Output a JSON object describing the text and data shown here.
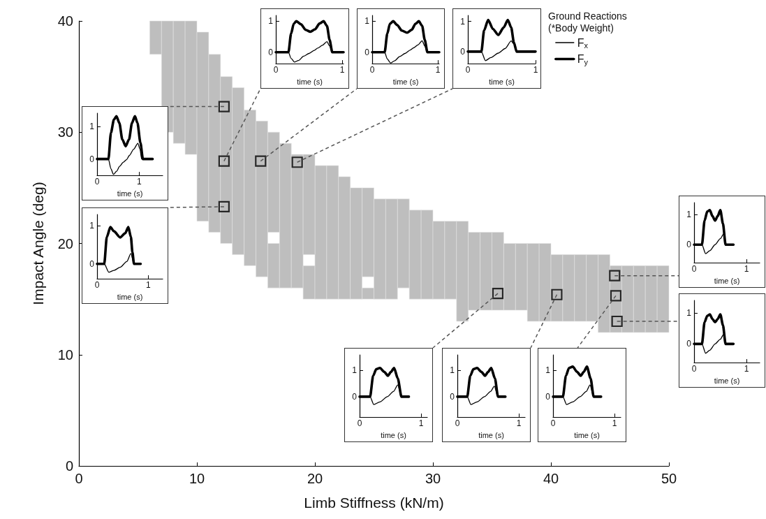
{
  "chart_data": [
    {
      "type": "bar",
      "xlabel": "Limb Stiffness (kN/m)",
      "ylabel": "Impact Angle (deg)",
      "xlim": [
        0,
        50
      ],
      "xticks": [
        0,
        10,
        20,
        30,
        40,
        50
      ],
      "ylim": [
        0,
        40
      ],
      "yticks": [
        0,
        10,
        20,
        30,
        40
      ],
      "grid": false,
      "series": [
        {
          "type": "bar",
          "color": "#bebebe",
          "x": [
            6.5,
            7.5,
            8.5,
            9.5,
            10.5,
            11.5,
            12.5,
            13.5,
            14.5,
            15.5,
            16.5,
            17.5,
            18.5,
            19.5,
            20.5,
            21.5,
            22.5,
            23.5,
            24.5,
            25.5,
            26.5,
            27.5,
            28.5,
            29.5,
            30.5,
            31.5,
            32.5,
            33.5,
            34.5,
            35.5,
            36.5,
            37.5,
            38.5,
            39.5,
            40.5,
            41.5,
            42.5,
            43.5,
            44.5,
            45.5,
            46.5,
            47.5,
            48.5,
            49.5
          ],
          "base": [
            37,
            30,
            29,
            28,
            22,
            21,
            20,
            19,
            18,
            17,
            16,
            16,
            16,
            15,
            15,
            15,
            15,
            15,
            15,
            15,
            15,
            16,
            15,
            15,
            15,
            15,
            13,
            14,
            14,
            14,
            14,
            14,
            13,
            13,
            13,
            13,
            13,
            13,
            12,
            12,
            12,
            12,
            12,
            12
          ],
          "values": [
            3,
            10,
            11,
            12,
            17,
            16,
            15,
            15,
            14,
            14,
            4,
            13,
            12,
            3,
            12,
            12,
            11,
            10,
            1,
            9,
            9,
            8,
            8,
            8,
            7,
            7,
            9,
            7,
            7,
            7,
            6,
            6,
            7,
            7,
            6,
            6,
            6,
            6,
            7,
            6,
            6,
            6,
            6,
            6
          ]
        },
        {
          "type": "bar",
          "color": "#bebebe",
          "x": [
            16.5,
            19.5,
            24.5
          ],
          "base": [
            21,
            19,
            17
          ],
          "values": [
            9,
            9,
            8
          ]
        },
        {
          "type": "scatter",
          "color": "#000000",
          "marker": "square",
          "x": [
            12.3,
            15.4,
            18.5,
            12.3,
            45.4,
            12.3,
            45.6,
            35.5,
            40.5,
            45.5
          ],
          "values": [
            27.4,
            27.4,
            27.3,
            32.3,
            17.1,
            23.3,
            13.0,
            15.5,
            15.4,
            15.3
          ]
        }
      ]
    },
    {
      "type": "line",
      "xlabel": "time (s)",
      "xlim": [
        0,
        1.02
      ],
      "xticks": [
        0,
        1
      ],
      "ylim": [
        -0.37,
        1.19
      ],
      "yticks": [
        0,
        1
      ],
      "series": [
        {
          "color": "#000000",
          "x": [
            0,
            0.19,
            0.23,
            0.28,
            0.34,
            0.42,
            0.5,
            0.58,
            0.63,
            0.7,
            0.77,
            0.81,
            0.85,
            1.02
          ],
          "values": [
            0,
            0,
            -0.2,
            -0.32,
            -0.27,
            -0.13,
            -0.04,
            0.06,
            0.13,
            0.22,
            0.34,
            0.2,
            0,
            0
          ]
        },
        {
          "color": "#000000",
          "x": [
            0,
            0.19,
            0.23,
            0.27,
            0.31,
            0.38,
            0.45,
            0.52,
            0.59,
            0.66,
            0.72,
            0.77,
            0.81,
            0.85,
            1.02
          ],
          "values": [
            0,
            0,
            0.6,
            0.92,
            1.0,
            0.9,
            0.72,
            0.66,
            0.74,
            0.93,
            1.0,
            0.85,
            0.4,
            0,
            0
          ]
        }
      ]
    },
    {
      "type": "line",
      "xlabel": "time (s)",
      "xlim": [
        0,
        1.02
      ],
      "xticks": [
        0,
        1
      ],
      "ylim": [
        -0.37,
        1.19
      ],
      "yticks": [
        0,
        1
      ],
      "series": [
        {
          "color": "#000000",
          "x": [
            0,
            0.19,
            0.23,
            0.28,
            0.34,
            0.42,
            0.5,
            0.58,
            0.63,
            0.7,
            0.76,
            0.8,
            0.84,
            1.02
          ],
          "values": [
            0,
            0,
            -0.22,
            -0.35,
            -0.28,
            -0.14,
            -0.04,
            0.07,
            0.14,
            0.24,
            0.37,
            0.2,
            0,
            0
          ]
        },
        {
          "color": "#000000",
          "x": [
            0,
            0.19,
            0.23,
            0.27,
            0.32,
            0.38,
            0.45,
            0.53,
            0.6,
            0.66,
            0.71,
            0.76,
            0.8,
            0.84,
            1.02
          ],
          "values": [
            0,
            0,
            0.6,
            0.92,
            1.0,
            0.88,
            0.7,
            0.63,
            0.72,
            0.92,
            1.0,
            0.85,
            0.4,
            0,
            0
          ]
        }
      ]
    },
    {
      "type": "line",
      "xlabel": "time (s)",
      "legend": "right",
      "legend_title": "Ground Reactions (*Body Weight)",
      "xlim": [
        0,
        1.0
      ],
      "xticks": [
        0,
        1
      ],
      "ylim": [
        -0.4,
        1.2
      ],
      "yticks": [
        0,
        1
      ],
      "series": [
        {
          "name": "F$_{x}$",
          "color": "#000000",
          "x": [
            0,
            0.2,
            0.26,
            0.34,
            0.45,
            0.55,
            0.64,
            0.68,
            0.72,
            1.0
          ],
          "values": [
            0,
            0,
            -0.3,
            -0.2,
            -0.05,
            0.1,
            0.35,
            0.25,
            0,
            0
          ]
        },
        {
          "name": "F$_{y}$",
          "color": "#000000",
          "x": [
            0,
            0.2,
            0.24,
            0.3,
            0.37,
            0.45,
            0.53,
            0.59,
            0.64,
            0.68,
            0.72,
            1.0
          ],
          "values": [
            0,
            0,
            0.7,
            1.05,
            0.75,
            0.55,
            0.8,
            1.05,
            0.8,
            0.3,
            0,
            0
          ]
        }
      ]
    },
    {
      "type": "line",
      "xlabel": "time (s)",
      "xlim": [
        0,
        1.56
      ],
      "xticks": [
        0,
        1
      ],
      "ylim": [
        -0.5,
        1.4
      ],
      "yticks": [
        0,
        1
      ],
      "series": [
        {
          "color": "#000000",
          "x": [
            0,
            0.27,
            0.33,
            0.39,
            0.46,
            0.54,
            0.62,
            0.7,
            0.77,
            0.87,
            0.97,
            1.02,
            1.06,
            1.32
          ],
          "values": [
            0,
            0,
            -0.3,
            -0.47,
            -0.38,
            -0.22,
            -0.1,
            -0.02,
            0.11,
            0.3,
            0.48,
            0.3,
            0,
            0
          ]
        },
        {
          "color": "#000000",
          "x": [
            0,
            0.27,
            0.33,
            0.4,
            0.46,
            0.53,
            0.6,
            0.68,
            0.76,
            0.83,
            0.9,
            0.96,
            1.03,
            1.09,
            1.32
          ],
          "values": [
            0,
            0,
            0.8,
            1.2,
            1.31,
            1.1,
            0.6,
            0.39,
            0.6,
            1.1,
            1.31,
            1.1,
            0.5,
            0,
            0
          ]
        }
      ]
    },
    {
      "type": "line",
      "xlabel": "time (s)",
      "xlim": [
        0,
        1.25
      ],
      "xticks": [
        0,
        1
      ],
      "ylim": [
        -0.6,
        1.4
      ],
      "yticks": [
        0,
        1
      ],
      "series": [
        {
          "color": "#000000",
          "x": [
            0,
            0.15,
            0.22,
            0.3,
            0.4,
            0.5,
            0.56,
            0.6,
            0.75
          ],
          "values": [
            0,
            0,
            -0.3,
            -0.2,
            0,
            0.2,
            0.35,
            0,
            0
          ]
        },
        {
          "color": "#000000",
          "x": [
            0,
            0.15,
            0.2,
            0.25,
            0.3,
            0.35,
            0.4,
            0.45,
            0.5,
            0.55,
            0.6,
            0.75
          ],
          "values": [
            0,
            0,
            0.8,
            1.1,
            1.15,
            0.95,
            0.8,
            0.95,
            1.15,
            0.7,
            0,
            0
          ]
        }
      ]
    },
    {
      "type": "line",
      "xlabel": "time (s)",
      "xlim": [
        0,
        1.28
      ],
      "xticks": [
        0,
        1
      ],
      "ylim": [
        -0.39,
        1.29
      ],
      "yticks": [
        0,
        1
      ],
      "series": [
        {
          "color": "#000000",
          "x": [
            0,
            0.14,
            0.23,
            0.33,
            0.45,
            0.58,
            0.66,
            0.72,
            0.85
          ],
          "values": [
            0,
            0,
            -0.22,
            -0.17,
            -0.09,
            0.06,
            0.27,
            0,
            0
          ]
        },
        {
          "color": "#000000",
          "x": [
            0,
            0.14,
            0.19,
            0.26,
            0.33,
            0.45,
            0.55,
            0.61,
            0.66,
            0.69,
            0.72,
            0.85
          ],
          "values": [
            0,
            0,
            0.7,
            0.96,
            0.85,
            0.69,
            0.8,
            0.96,
            0.7,
            0.3,
            0,
            0
          ]
        }
      ]
    },
    {
      "type": "line",
      "xlabel": "time (s)",
      "xlim": [
        0,
        1.25
      ],
      "xticks": [
        0,
        1
      ],
      "ylim": [
        -0.6,
        1.4
      ],
      "yticks": [
        0,
        1
      ],
      "series": [
        {
          "color": "#000000",
          "x": [
            0,
            0.15,
            0.22,
            0.3,
            0.4,
            0.5,
            0.56,
            0.6,
            0.75
          ],
          "values": [
            0,
            0,
            -0.3,
            -0.2,
            0,
            0.15,
            0.3,
            0,
            0
          ]
        },
        {
          "color": "#000000",
          "x": [
            0,
            0.15,
            0.2,
            0.25,
            0.3,
            0.35,
            0.4,
            0.45,
            0.5,
            0.55,
            0.6,
            0.75
          ],
          "values": [
            0,
            0,
            0.7,
            0.9,
            0.95,
            0.8,
            0.7,
            0.8,
            0.95,
            0.6,
            0,
            0
          ]
        }
      ]
    },
    {
      "type": "line",
      "xlabel": "time (s)",
      "xlim": [
        0,
        1.1
      ],
      "xticks": [
        0,
        1
      ],
      "ylim": [
        -0.78,
        1.6
      ],
      "yticks": [
        0,
        1
      ],
      "series": [
        {
          "color": "#000000",
          "x": [
            0,
            0.17,
            0.23,
            0.33,
            0.45,
            0.55,
            0.62,
            0.68,
            0.8
          ],
          "values": [
            0,
            0,
            -0.3,
            -0.2,
            0,
            0.2,
            0.45,
            0,
            0
          ]
        },
        {
          "color": "#000000",
          "x": [
            0,
            0.17,
            0.22,
            0.27,
            0.33,
            0.4,
            0.46,
            0.51,
            0.56,
            0.62,
            0.68,
            0.8
          ],
          "values": [
            0,
            0,
            0.8,
            1.05,
            1.1,
            0.95,
            0.8,
            0.95,
            1.1,
            0.7,
            0,
            0
          ]
        }
      ]
    },
    {
      "type": "line",
      "xlabel": "time (s)",
      "xlim": [
        0,
        1.1
      ],
      "xticks": [
        0,
        1
      ],
      "ylim": [
        -0.78,
        1.6
      ],
      "yticks": [
        0,
        1
      ],
      "series": [
        {
          "color": "#000000",
          "x": [
            0,
            0.16,
            0.22,
            0.32,
            0.44,
            0.54,
            0.6,
            0.66,
            0.78
          ],
          "values": [
            0,
            0,
            -0.3,
            -0.2,
            0,
            0.2,
            0.4,
            0,
            0
          ]
        },
        {
          "color": "#000000",
          "x": [
            0,
            0.16,
            0.21,
            0.26,
            0.32,
            0.39,
            0.45,
            0.5,
            0.55,
            0.61,
            0.66,
            0.78
          ],
          "values": [
            0,
            0,
            0.8,
            1.05,
            1.1,
            0.95,
            0.8,
            0.95,
            1.1,
            0.7,
            0,
            0
          ]
        }
      ]
    },
    {
      "type": "line",
      "xlabel": "time (s)",
      "xlim": [
        0,
        1.1
      ],
      "xticks": [
        0,
        1
      ],
      "ylim": [
        -0.78,
        1.6
      ],
      "yticks": [
        0,
        1
      ],
      "series": [
        {
          "color": "#000000",
          "x": [
            0,
            0.16,
            0.22,
            0.32,
            0.44,
            0.54,
            0.6,
            0.66,
            0.78
          ],
          "values": [
            0,
            0,
            -0.3,
            -0.2,
            0,
            0.2,
            0.45,
            0,
            0
          ]
        },
        {
          "color": "#000000",
          "x": [
            0,
            0.16,
            0.21,
            0.26,
            0.32,
            0.39,
            0.45,
            0.5,
            0.55,
            0.61,
            0.66,
            0.78
          ],
          "values": [
            0,
            0,
            0.8,
            1.1,
            1.15,
            0.95,
            0.8,
            0.95,
            1.15,
            0.7,
            0,
            0
          ]
        }
      ]
    }
  ]
}
